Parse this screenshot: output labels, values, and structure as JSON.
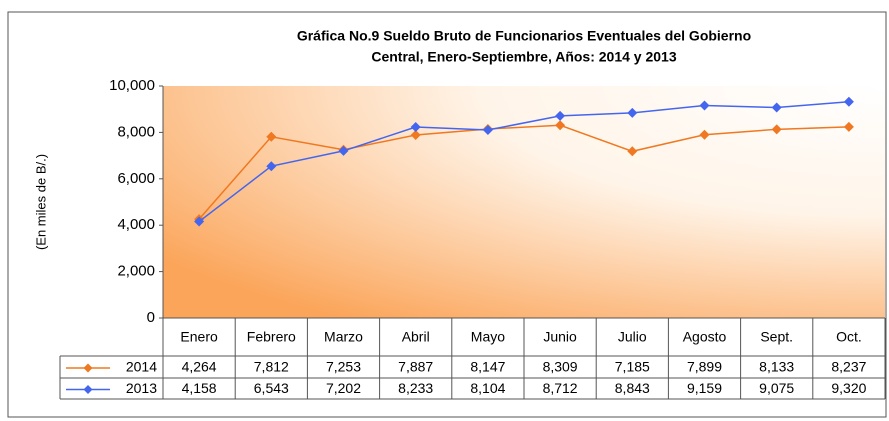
{
  "chart_data": {
    "type": "line",
    "title": [
      "Gráfica No.9 Sueldo Bruto de Funcionarios Eventuales del Gobierno",
      "Central, Enero-Septiembre, Años: 2014 y 2013"
    ],
    "y_label": "(En miles de B/.)",
    "categories": [
      "Enero",
      "Febrero",
      "Marzo",
      "Abril",
      "Mayo",
      "Junio",
      "Julio",
      "Agosto",
      "Sept.",
      "Oct."
    ],
    "series": [
      {
        "name": "2014",
        "color": "#f07820",
        "values": [
          4264,
          7812,
          7253,
          7887,
          8147,
          8309,
          7185,
          7899,
          8133,
          8237
        ],
        "value_labels": [
          "4,264",
          "7,812",
          "7,253",
          "7,887",
          "8,147",
          "8,309",
          "7,185",
          "7,899",
          "8,133",
          "8,237"
        ]
      },
      {
        "name": "2013",
        "color": "#4466ee",
        "values": [
          4158,
          6543,
          7202,
          8233,
          8104,
          8712,
          8843,
          9159,
          9075,
          9320
        ],
        "value_labels": [
          "4,158",
          "6,543",
          "7,202",
          "8,233",
          "8,104",
          "8,712",
          "8,843",
          "9,159",
          "9,075",
          "9,320"
        ]
      }
    ],
    "ylim": [
      0,
      10000
    ],
    "yticks": [
      0,
      {
        "value": 2000,
        "label": "2,000"
      },
      {
        "value": 4000,
        "label": "4,000"
      },
      {
        "value": 6000,
        "label": "6,000"
      },
      {
        "value": 8000,
        "label": "8,000"
      },
      {
        "value": 10000,
        "label": "10,000"
      }
    ],
    "grid": false
  }
}
